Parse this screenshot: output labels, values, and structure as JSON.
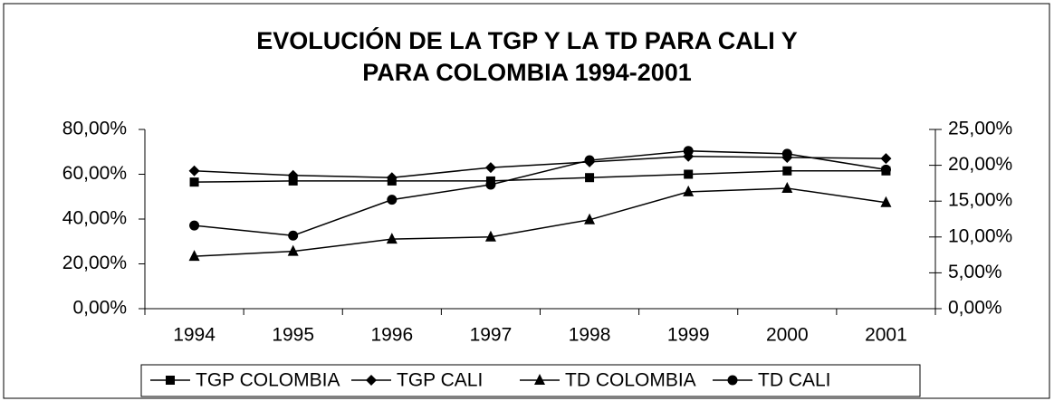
{
  "chart_data": {
    "type": "line",
    "title": [
      "EVOLUCIÓN DE LA TGP Y LA TD PARA CALI Y",
      "PARA COLOMBIA 1994-2001"
    ],
    "categories": [
      "1994",
      "1995",
      "1996",
      "1997",
      "1998",
      "1999",
      "2000",
      "2001"
    ],
    "series": [
      {
        "name": "TGP COLOMBIA",
        "color": "#000000",
        "marker": "square",
        "axis": "y",
        "values": [
          56.5,
          57,
          57,
          57,
          58.5,
          60,
          61.5,
          61.5
        ]
      },
      {
        "name": "TGP CALI",
        "color": "#000000",
        "marker": "diamond",
        "axis": "y",
        "values": [
          61.5,
          59.5,
          58.5,
          63,
          65.5,
          68,
          67.5,
          67
        ]
      },
      {
        "name": "TD COLOMBIA",
        "color": "#000000",
        "marker": "triangle",
        "axis": "y2",
        "values": [
          7.3,
          8.0,
          9.7,
          10.0,
          12.4,
          16.3,
          16.8,
          14.8
        ]
      },
      {
        "name": "TD CALI",
        "color": "#000000",
        "marker": "circle",
        "axis": "y2",
        "values": [
          11.6,
          10.2,
          15.2,
          17.3,
          20.7,
          22.0,
          21.6,
          19.4
        ]
      }
    ],
    "ylim": [
      0,
      80
    ],
    "yticks": [
      {
        "value": 0,
        "label": "0,00%"
      },
      {
        "value": 20,
        "label": "20,00%"
      },
      {
        "value": 40,
        "label": "40,00%"
      },
      {
        "value": 60,
        "label": "60,00%"
      },
      {
        "value": 80,
        "label": "80,00%"
      }
    ],
    "y2lim": [
      0,
      25
    ],
    "y2ticks": [
      {
        "value": 0,
        "label": "0,00%"
      },
      {
        "value": 5,
        "label": "5,00%"
      },
      {
        "value": 10,
        "label": "10,00%"
      },
      {
        "value": 15,
        "label": "15,00%"
      },
      {
        "value": 20,
        "label": "20,00%"
      },
      {
        "value": 25,
        "label": "25,00%"
      }
    ],
    "legend": "bottom",
    "grid": false
  }
}
